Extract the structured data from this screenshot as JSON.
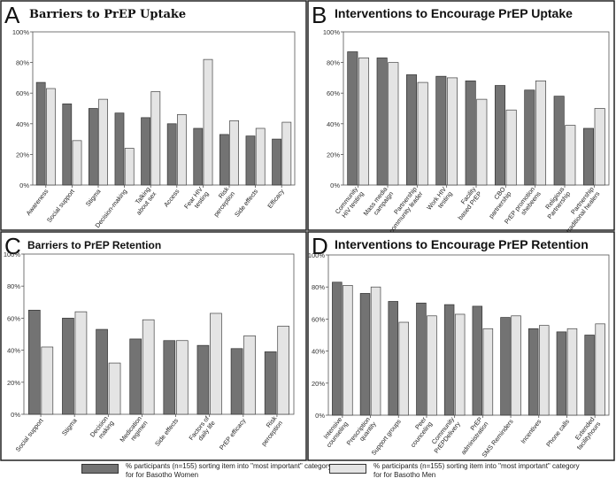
{
  "colors": {
    "women": "#737373",
    "men": "#e4e4e4",
    "border": "#222222"
  },
  "legend": {
    "women": "% participants (n=155) sorting item into \"most important\" category for for Basotho Women",
    "men": "% participants (n=155) sorting item into \"most important\" category for for Basotho Men"
  },
  "chart_data": [
    {
      "type": "bar",
      "letter": "A",
      "title": "Barriers to PrEP Uptake",
      "yticks": [
        "0%",
        "20%",
        "40%",
        "60%",
        "80%",
        "100%"
      ],
      "ylim": [
        0,
        100
      ],
      "categories": [
        "Awareness",
        "Social support",
        "Stigma",
        "Decision-making",
        "Talking about sex",
        "Access",
        "Fear HIV testing",
        "Risk perception",
        "Side effects",
        "Efficacy"
      ],
      "series": [
        {
          "name": "Basotho Women",
          "values": [
            67,
            53,
            50,
            47,
            44,
            40,
            37,
            33,
            32,
            30
          ]
        },
        {
          "name": "Basotho Men",
          "values": [
            63,
            29,
            56,
            24,
            61,
            46,
            82,
            42,
            37,
            41
          ]
        }
      ]
    },
    {
      "type": "bar",
      "letter": "B",
      "title": "Interventions to Encourage PrEP Uptake",
      "yticks": [
        "0%",
        "20%",
        "40%",
        "60%",
        "80%",
        "100%"
      ],
      "ylim": [
        0,
        100
      ],
      "categories": [
        "Community HIV testing",
        "Mass media campaign",
        "Partnership community leader",
        "Work HIV testing",
        "Facility based PrEP",
        "CBO partnership",
        "PrEP promotion shebeens",
        "Religious Partnership",
        "Partnership traditional healers"
      ],
      "series": [
        {
          "name": "Basotho Women",
          "values": [
            87,
            83,
            72,
            71,
            68,
            65,
            62,
            58,
            37
          ]
        },
        {
          "name": "Basotho Men",
          "values": [
            83,
            80,
            67,
            70,
            56,
            49,
            68,
            39,
            50
          ]
        }
      ]
    },
    {
      "type": "bar",
      "letter": "C",
      "title": "Barriers to PrEP Retention",
      "yticks": [
        "0%",
        "20%",
        "40%",
        "60%",
        "80%",
        "100%"
      ],
      "ylim": [
        0,
        100
      ],
      "categories": [
        "Social support",
        "Stigma",
        "Decision making",
        "Medication regimen",
        "Side effects",
        "Factors of daily life",
        "PrEP efficacy",
        "Risk perception"
      ],
      "series": [
        {
          "name": "Basotho Women",
          "values": [
            65,
            60,
            53,
            47,
            46,
            43,
            41,
            39
          ]
        },
        {
          "name": "Basotho Men",
          "values": [
            42,
            64,
            32,
            59,
            46,
            63,
            49,
            55
          ]
        }
      ]
    },
    {
      "type": "bar",
      "letter": "D",
      "title": "Interventions to Encourage PrEP Retention",
      "yticks": [
        "0%",
        "20%",
        "40%",
        "60%",
        "80%",
        "100%"
      ],
      "ylim": [
        0,
        100
      ],
      "categories": [
        "Intensive counseling",
        "Prescription quantity",
        "Support groups",
        "Peer counceling",
        "Community PrEPDelivery",
        "PrEP administration",
        "SMS Reminders",
        "Incentives",
        "Phone calls",
        "Extended facilityhours"
      ],
      "series": [
        {
          "name": "Basotho Women",
          "values": [
            83,
            76,
            71,
            70,
            69,
            68,
            61,
            54,
            52,
            50
          ]
        },
        {
          "name": "Basotho Men",
          "values": [
            81,
            80,
            58,
            62,
            63,
            54,
            62,
            56,
            54,
            57
          ]
        }
      ]
    }
  ]
}
